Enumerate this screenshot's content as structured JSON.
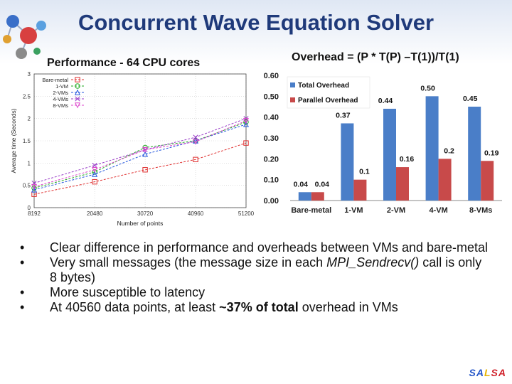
{
  "slide": {
    "title": "Concurrent Wave Equation Solver",
    "left_label": "Performance - 64 CPU cores",
    "right_label": "Overhead = (P * T(P) –T(1))/T(1)",
    "bullets": [
      "Clear difference in performance and overheads between VMs and bare-metal",
      "Very small messages (the message size in each MPI_Sendrecv() call is only 8 bytes)",
      "More susceptible to latency",
      "At 40560 data points, at least ~37% of total overhead in VMs"
    ],
    "bullet2_pre": "Very small messages (the message size in each ",
    "bullet2_em": "MPI_Sendrecv()",
    "bullet2_post": " call is only 8 bytes)",
    "bullet4_pre": "At 40560 data points, at least ",
    "bullet4_bold": "~37% of total",
    "bullet4_post": " overhead in VMs",
    "salsa": "SALSA",
    "salsa_parts": [
      "SA",
      "L",
      "SA"
    ]
  },
  "chart_data": [
    {
      "type": "line",
      "xlabel": "Number of points",
      "ylabel": "Average time (Seconds)",
      "x": [
        8192,
        20480,
        30720,
        40960,
        51200
      ],
      "x_ticks": [
        "8192",
        "20480",
        "30720",
        "40960",
        "51200"
      ],
      "y_ticks": [
        "0",
        "0.5",
        "1",
        "1.5",
        "2",
        "2.5",
        "3"
      ],
      "ylim": [
        0,
        3
      ],
      "xlim": [
        8192,
        51200
      ],
      "legend_position": "top-left",
      "grid": true,
      "series": [
        {
          "name": "Bare-metal",
          "color": "#e03030",
          "marker": "square",
          "values": [
            0.3,
            0.58,
            0.85,
            1.08,
            1.45
          ]
        },
        {
          "name": "1-VM",
          "color": "#22aa22",
          "marker": "circle",
          "values": [
            0.44,
            0.8,
            1.35,
            1.5,
            1.92
          ]
        },
        {
          "name": "2-VMs",
          "color": "#2255dd",
          "marker": "triangle",
          "values": [
            0.4,
            0.75,
            1.2,
            1.5,
            1.87
          ]
        },
        {
          "name": "4-VMs",
          "color": "#9a3ec8",
          "marker": "x",
          "values": [
            0.55,
            0.95,
            1.3,
            1.58,
            2.0
          ]
        },
        {
          "name": "8-VMs",
          "color": "#dd44cc",
          "marker": "triangle-down",
          "values": [
            0.47,
            0.85,
            1.3,
            1.48,
            1.95
          ]
        }
      ]
    },
    {
      "type": "bar",
      "categories": [
        "Bare-metal",
        "1-VM",
        "2-VM",
        "4-VM",
        "8-VMs"
      ],
      "ylim": [
        0,
        0.6
      ],
      "y_ticks": [
        "0.00",
        "0.10",
        "0.20",
        "0.30",
        "0.40",
        "0.50",
        "0.60"
      ],
      "legend_position": "top-left",
      "grid": false,
      "series": [
        {
          "name": "Total Overhead",
          "color": "#4a7ec8",
          "values": [
            0.04,
            0.37,
            0.44,
            0.5,
            0.45
          ],
          "labels": [
            "0.04",
            "0.37",
            "0.44",
            "0.50",
            "0.45"
          ]
        },
        {
          "name": "Parallel Overhead",
          "color": "#c84a4a",
          "values": [
            0.04,
            0.1,
            0.16,
            0.2,
            0.19
          ],
          "labels": [
            "0.04",
            "0.1",
            "0.16",
            "0.2",
            "0.19"
          ]
        }
      ]
    }
  ]
}
